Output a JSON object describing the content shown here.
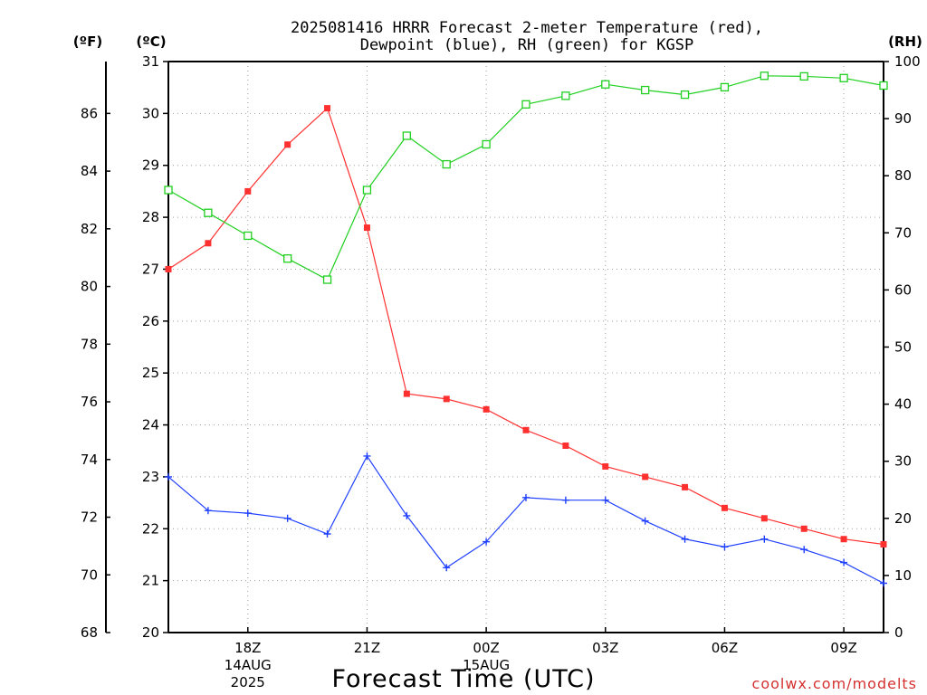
{
  "chart_data": {
    "type": "line",
    "title": [
      "2025081416 HRRR Forecast 2-meter Temperature (red),",
      "Dewpoint (blue), RH (green) for KGSP"
    ],
    "xlabel": "Forecast Time (UTC)",
    "unit_labels": {
      "f": "(ºF)",
      "c": "(ºC)",
      "rh": "(RH)"
    },
    "credit": "coolwx.com/modelts",
    "x_start_hour": 16,
    "x_end_hour": 34,
    "xticks": [
      {
        "hour": 18,
        "lines": [
          "18Z",
          "14AUG",
          "2025"
        ]
      },
      {
        "hour": 21,
        "lines": [
          "21Z"
        ]
      },
      {
        "hour": 24,
        "lines": [
          "00Z",
          "15AUG"
        ]
      },
      {
        "hour": 27,
        "lines": [
          "03Z"
        ]
      },
      {
        "hour": 30,
        "lines": [
          "06Z"
        ]
      },
      {
        "hour": 33,
        "lines": [
          "09Z"
        ]
      }
    ],
    "y_celsius": {
      "range": [
        20,
        31
      ],
      "ticks": [
        20,
        21,
        22,
        23,
        24,
        25,
        26,
        27,
        28,
        29,
        30,
        31
      ]
    },
    "y_fahrenheit": {
      "ticks": [
        68,
        70,
        72,
        74,
        76,
        78,
        80,
        82,
        84,
        86
      ]
    },
    "y_rh": {
      "range": [
        0,
        100
      ],
      "ticks": [
        0,
        10,
        20,
        30,
        40,
        50,
        60,
        70,
        80,
        90,
        100
      ]
    },
    "grid": true,
    "series": [
      {
        "key": "temperature",
        "axis": "celsius",
        "color": "#ff3030",
        "marker": "filled-square",
        "values": [
          27.0,
          27.5,
          28.5,
          29.4,
          30.1,
          27.8,
          24.6,
          24.5,
          24.3,
          23.9,
          23.6,
          23.2,
          23.0,
          22.8,
          22.4,
          22.2,
          22.0,
          21.8,
          21.7
        ]
      },
      {
        "key": "dewpoint",
        "axis": "celsius",
        "color": "#2040ff",
        "marker": "plus",
        "values": [
          23.0,
          22.35,
          22.3,
          22.2,
          21.9,
          23.4,
          22.25,
          21.25,
          21.75,
          22.6,
          22.55,
          22.55,
          22.15,
          21.8,
          21.65,
          21.8,
          21.6,
          21.35,
          20.95
        ]
      },
      {
        "key": "rh",
        "axis": "rh",
        "color": "#20d020",
        "marker": "open-square",
        "values": [
          77.5,
          73.5,
          69.5,
          65.5,
          61.8,
          77.5,
          87.0,
          82.0,
          85.5,
          92.5,
          94.0,
          96.0,
          95.0,
          94.2,
          95.5,
          97.5,
          97.4,
          97.1,
          95.8
        ]
      }
    ]
  }
}
